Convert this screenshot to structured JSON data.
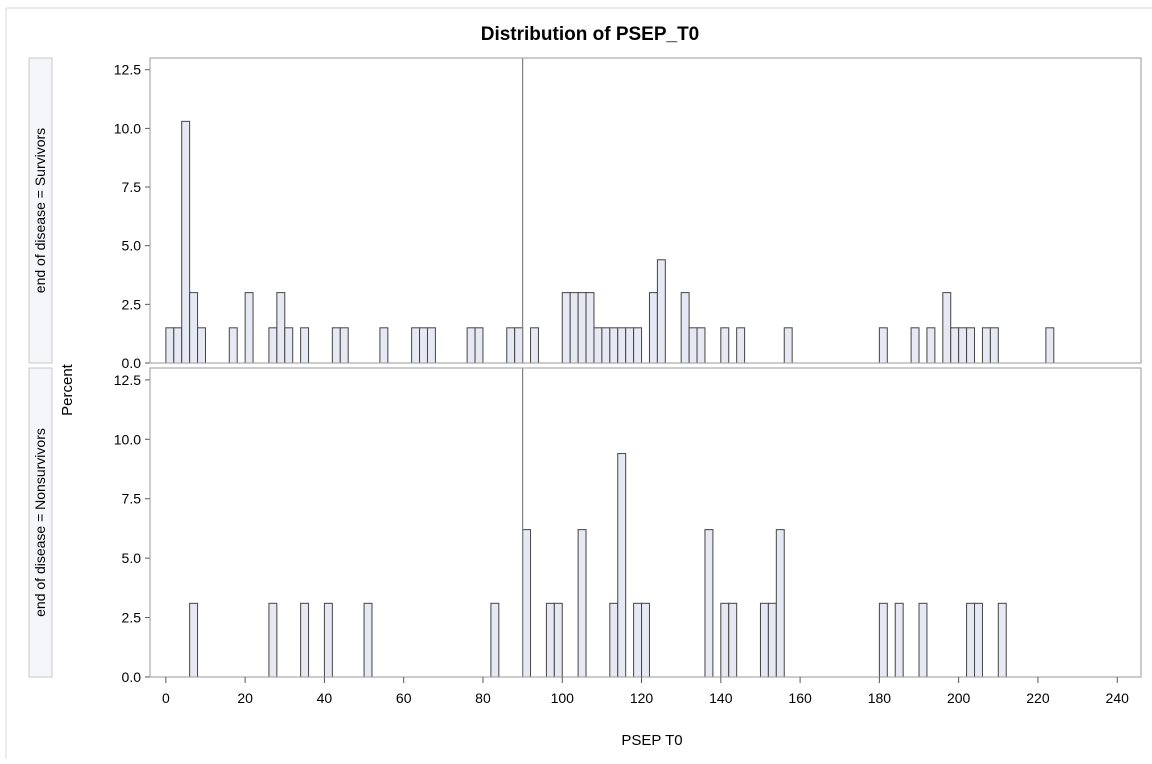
{
  "chart_data": {
    "type": "bar",
    "title": "Distribution of PSEP_T0",
    "xlabel": "PSEP T0",
    "ylabel": "Percent",
    "xlim": [
      -4,
      246
    ],
    "ylim": [
      0,
      13
    ],
    "x_ticks": [
      "0",
      "20",
      "40",
      "60",
      "80",
      "100",
      "120",
      "140",
      "160",
      "180",
      "200",
      "220",
      "240"
    ],
    "y_ticks": [
      "0.0",
      "2.5",
      "5.0",
      "7.5",
      "10.0",
      "12.5"
    ],
    "bin_width": 2,
    "reference_line_x": 90,
    "grid": false,
    "colors": {
      "bar_fill": "#e6e9f3",
      "bar_stroke": "#444444",
      "frame": "#9a9a9a",
      "ref_line": "#808080"
    },
    "panels": [
      {
        "label": "end of disease = Survivors",
        "bins": [
          [
            1,
            1.5
          ],
          [
            3,
            1.5
          ],
          [
            5,
            10.3
          ],
          [
            7,
            3.0
          ],
          [
            9,
            1.5
          ],
          [
            17,
            1.5
          ],
          [
            21,
            3.0
          ],
          [
            27,
            1.5
          ],
          [
            29,
            3.0
          ],
          [
            31,
            1.5
          ],
          [
            35,
            1.5
          ],
          [
            43,
            1.5
          ],
          [
            45,
            1.5
          ],
          [
            55,
            1.5
          ],
          [
            63,
            1.5
          ],
          [
            65,
            1.5
          ],
          [
            67,
            1.5
          ],
          [
            77,
            1.5
          ],
          [
            79,
            1.5
          ],
          [
            87,
            1.5
          ],
          [
            89,
            1.5
          ],
          [
            93,
            1.5
          ],
          [
            101,
            3.0
          ],
          [
            103,
            3.0
          ],
          [
            105,
            3.0
          ],
          [
            107,
            3.0
          ],
          [
            109,
            1.5
          ],
          [
            111,
            1.5
          ],
          [
            113,
            1.5
          ],
          [
            115,
            1.5
          ],
          [
            117,
            1.5
          ],
          [
            119,
            1.5
          ],
          [
            123,
            3.0
          ],
          [
            125,
            4.4
          ],
          [
            131,
            3.0
          ],
          [
            133,
            1.5
          ],
          [
            135,
            1.5
          ],
          [
            141,
            1.5
          ],
          [
            145,
            1.5
          ],
          [
            157,
            1.5
          ],
          [
            181,
            1.5
          ],
          [
            189,
            1.5
          ],
          [
            193,
            1.5
          ],
          [
            197,
            3.0
          ],
          [
            199,
            1.5
          ],
          [
            201,
            1.5
          ],
          [
            203,
            1.5
          ],
          [
            207,
            1.5
          ],
          [
            209,
            1.5
          ],
          [
            223,
            1.5
          ]
        ]
      },
      {
        "label": "end of disease = Nonsurvivors",
        "bins": [
          [
            7,
            3.1
          ],
          [
            27,
            3.1
          ],
          [
            35,
            3.1
          ],
          [
            41,
            3.1
          ],
          [
            51,
            3.1
          ],
          [
            83,
            3.1
          ],
          [
            91,
            6.2
          ],
          [
            97,
            3.1
          ],
          [
            99,
            3.1
          ],
          [
            105,
            6.2
          ],
          [
            113,
            3.1
          ],
          [
            115,
            9.4
          ],
          [
            119,
            3.1
          ],
          [
            121,
            3.1
          ],
          [
            137,
            6.2
          ],
          [
            141,
            3.1
          ],
          [
            143,
            3.1
          ],
          [
            151,
            3.1
          ],
          [
            153,
            3.1
          ],
          [
            155,
            6.2
          ],
          [
            181,
            3.1
          ],
          [
            185,
            3.1
          ],
          [
            191,
            3.1
          ],
          [
            203,
            3.1
          ],
          [
            205,
            3.1
          ],
          [
            211,
            3.1
          ]
        ]
      }
    ]
  }
}
